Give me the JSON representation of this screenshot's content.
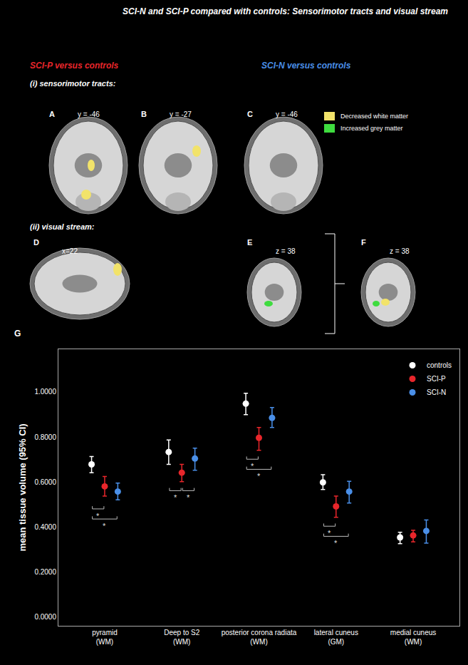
{
  "header": {
    "title": "SCI-N and SCI-P compared with controls: Sensorimotor tracts and visual stream",
    "groups": [
      {
        "text": "SCI-P versus controls",
        "color": "#e8262b"
      },
      {
        "text": "SCI-N versus controls",
        "color": "#4a8fe8"
      }
    ],
    "sections": [
      "(i) sensorimotor tracts:",
      "(ii) visual stream:"
    ],
    "key": [
      {
        "text": "Decreased white matter",
        "color": "#f2e36a"
      },
      {
        "text": "Increased grey matter",
        "color": "#3fdc3f"
      }
    ]
  },
  "brain_panels": [
    {
      "label": "A",
      "coordinate": "y = -46"
    },
    {
      "label": "B",
      "coordinate": "y = -27"
    },
    {
      "label": "C",
      "coordinate": "y = -46"
    },
    {
      "label": "D",
      "coordinate": "x=22"
    },
    {
      "label": "E",
      "coordinate": "z = 38"
    },
    {
      "label": "F",
      "coordinate": "z = 38"
    }
  ],
  "chart_label": "G",
  "chart_data": {
    "type": "scatter",
    "y_label": "mean tissue volume (95% CI)",
    "categories": [
      "pyramid\n(WM)",
      "Deep to S2\n(WM)",
      "posterior corona radiata\n(WM)",
      "lateral cuneus\n(GM)",
      "medial cuneus\n(WM)"
    ],
    "series": [
      {
        "name": "controls",
        "color": "#ffffff",
        "values": [
          0.678,
          0.733,
          0.948,
          0.598,
          0.353
        ],
        "error_low": [
          0.641,
          0.678,
          0.899,
          0.566,
          0.325
        ],
        "error_high": [
          0.713,
          0.787,
          0.994,
          0.632,
          0.376
        ]
      },
      {
        "name": "SCI-P",
        "color": "#e8262b",
        "values": [
          0.58,
          0.641,
          0.796,
          0.491,
          0.362
        ],
        "error_low": [
          0.537,
          0.601,
          0.741,
          0.443,
          0.333
        ],
        "error_high": [
          0.624,
          0.678,
          0.842,
          0.537,
          0.385
        ]
      },
      {
        "name": "SCI-N",
        "color": "#4a8fe8",
        "values": [
          0.557,
          0.704,
          0.885,
          0.557,
          0.382
        ],
        "error_low": [
          0.52,
          0.652,
          0.842,
          0.506,
          0.328
        ],
        "error_high": [
          0.595,
          0.75,
          0.931,
          0.603,
          0.431
        ]
      }
    ],
    "significance": [
      {
        "category": "pyramid\n(WM)",
        "pair": [
          "controls",
          "SCI-P"
        ],
        "label": "*"
      },
      {
        "category": "pyramid\n(WM)",
        "pair": [
          "controls",
          "SCI-N"
        ],
        "label": "*"
      },
      {
        "category": "Deep to S2\n(WM)",
        "pair": [
          "controls",
          "SCI-P"
        ],
        "label": "*"
      },
      {
        "category": "Deep to S2\n(WM)",
        "pair": [
          "SCI-P",
          "SCI-N"
        ],
        "label": "*"
      },
      {
        "category": "posterior corona radiata\n(WM)",
        "pair": [
          "controls",
          "SCI-P"
        ],
        "label": "*"
      },
      {
        "category": "posterior corona radiata\n(WM)",
        "pair": [
          "controls",
          "SCI-N"
        ],
        "label": "*"
      },
      {
        "category": "lateral cuneus\n(GM)",
        "pair": [
          "controls",
          "SCI-P"
        ],
        "label": "*"
      },
      {
        "category": "lateral cuneus\n(GM)",
        "pair": [
          "controls",
          "SCI-N"
        ],
        "label": "*"
      }
    ],
    "ylim": [
      -0.04,
      1.19
    ],
    "yticks": [
      {
        "value": 0,
        "label": "0.0000"
      },
      {
        "value": 0.2,
        "label": "0.2000"
      },
      {
        "value": 0.4,
        "label": "0.4000"
      },
      {
        "value": 0.6,
        "label": "0.6000"
      },
      {
        "value": 0.8,
        "label": "0.8000"
      },
      {
        "value": 1,
        "label": "1.0000"
      }
    ],
    "grid": false,
    "legend": "upper right",
    "marker": "circle"
  }
}
